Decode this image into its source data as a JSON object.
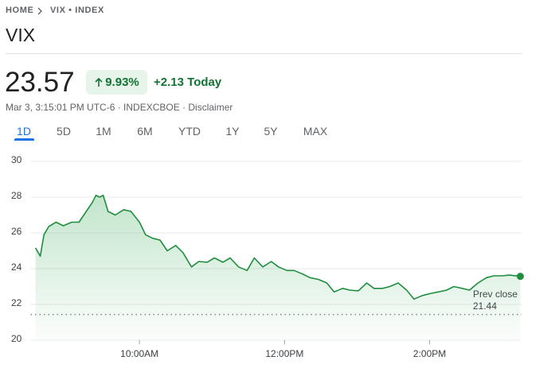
{
  "breadcrumb": [
    "HOME",
    "VIX • INDEX"
  ],
  "header": {
    "title": "VIX",
    "price": 23.57,
    "change_percent": "9.93%",
    "change": "+2.13",
    "change_period": "Today",
    "meta": "Mar 3, 3:15:01 PM UTC-6 · INDEXCBOE · Disclaimer"
  },
  "tabs": [
    "1D",
    "5D",
    "1M",
    "6M",
    "YTD",
    "1Y",
    "5Y",
    "MAX"
  ],
  "chart_data": {
    "type": "area",
    "color": "#1e8e3e",
    "grid": true,
    "x": [
      514,
      518,
      521,
      525,
      531,
      537,
      544,
      550,
      556,
      561,
      564,
      567,
      570,
      574,
      580,
      587,
      593,
      600,
      605,
      611,
      617,
      623,
      630,
      636,
      643,
      649,
      656,
      662,
      669,
      675,
      682,
      689,
      695,
      702,
      709,
      715,
      722,
      728,
      735,
      741,
      748,
      755,
      761,
      768,
      774,
      781,
      788,
      794,
      801,
      807,
      814,
      821,
      827,
      834,
      840,
      847,
      854,
      860,
      867,
      873,
      880,
      887,
      893,
      900,
      906,
      915
    ],
    "values": [
      25.16,
      24.7,
      25.9,
      26.36,
      26.6,
      26.4,
      26.6,
      26.6,
      27.2,
      27.7,
      28.1,
      28.0,
      28.1,
      27.2,
      27.0,
      27.3,
      27.2,
      26.6,
      25.9,
      25.7,
      25.6,
      25.0,
      25.3,
      24.9,
      24.1,
      24.4,
      24.36,
      24.6,
      24.36,
      24.6,
      24.1,
      23.9,
      24.6,
      24.1,
      24.4,
      24.1,
      23.9,
      23.9,
      23.7,
      23.5,
      23.4,
      23.2,
      22.7,
      22.9,
      22.8,
      22.76,
      23.2,
      22.9,
      22.9,
      23.0,
      23.2,
      22.8,
      22.3,
      22.5,
      22.6,
      22.7,
      22.8,
      23.0,
      22.9,
      22.8,
      23.2,
      23.5,
      23.6,
      23.6,
      23.64,
      23.57
    ],
    "xlim": [
      510,
      916
    ],
    "xticks": [
      {
        "value": 600,
        "label": "10:00AM"
      },
      {
        "value": 720,
        "label": "12:00PM"
      },
      {
        "value": 840,
        "label": "2:00PM"
      }
    ],
    "ylim": [
      20,
      30
    ],
    "yticks": [
      20,
      22,
      24,
      26,
      28,
      30
    ],
    "reference_line": {
      "label": "Prev close",
      "value": 21.44
    }
  }
}
